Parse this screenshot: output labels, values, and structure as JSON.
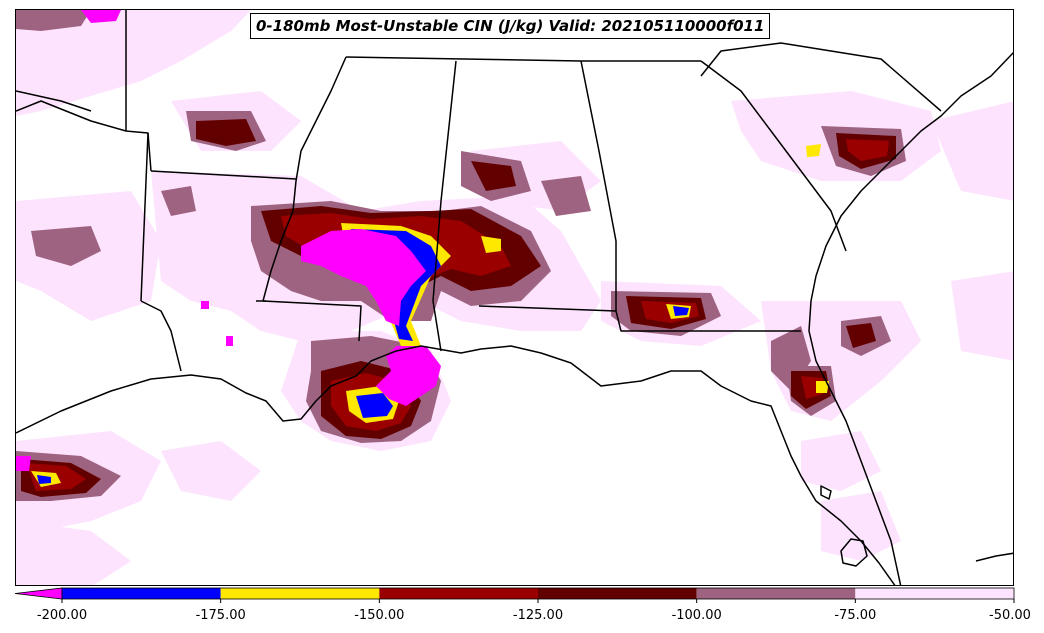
{
  "title": "0-180mb Most-Unstable CIN (J/kg) Valid: 202105110000f011",
  "colors": {
    "below_min": "#ff00ff",
    "bins": [
      "#0000ff",
      "#ffe800",
      "#9b0000",
      "#620000",
      "#9e6380",
      "#fde3fd"
    ],
    "border": "#000000"
  },
  "colorbar": {
    "ticks": [
      "-200.00",
      "-175.00",
      "-150.00",
      "-125.00",
      "-100.00",
      "-75.00",
      "-50.00"
    ],
    "extend": "min"
  }
}
